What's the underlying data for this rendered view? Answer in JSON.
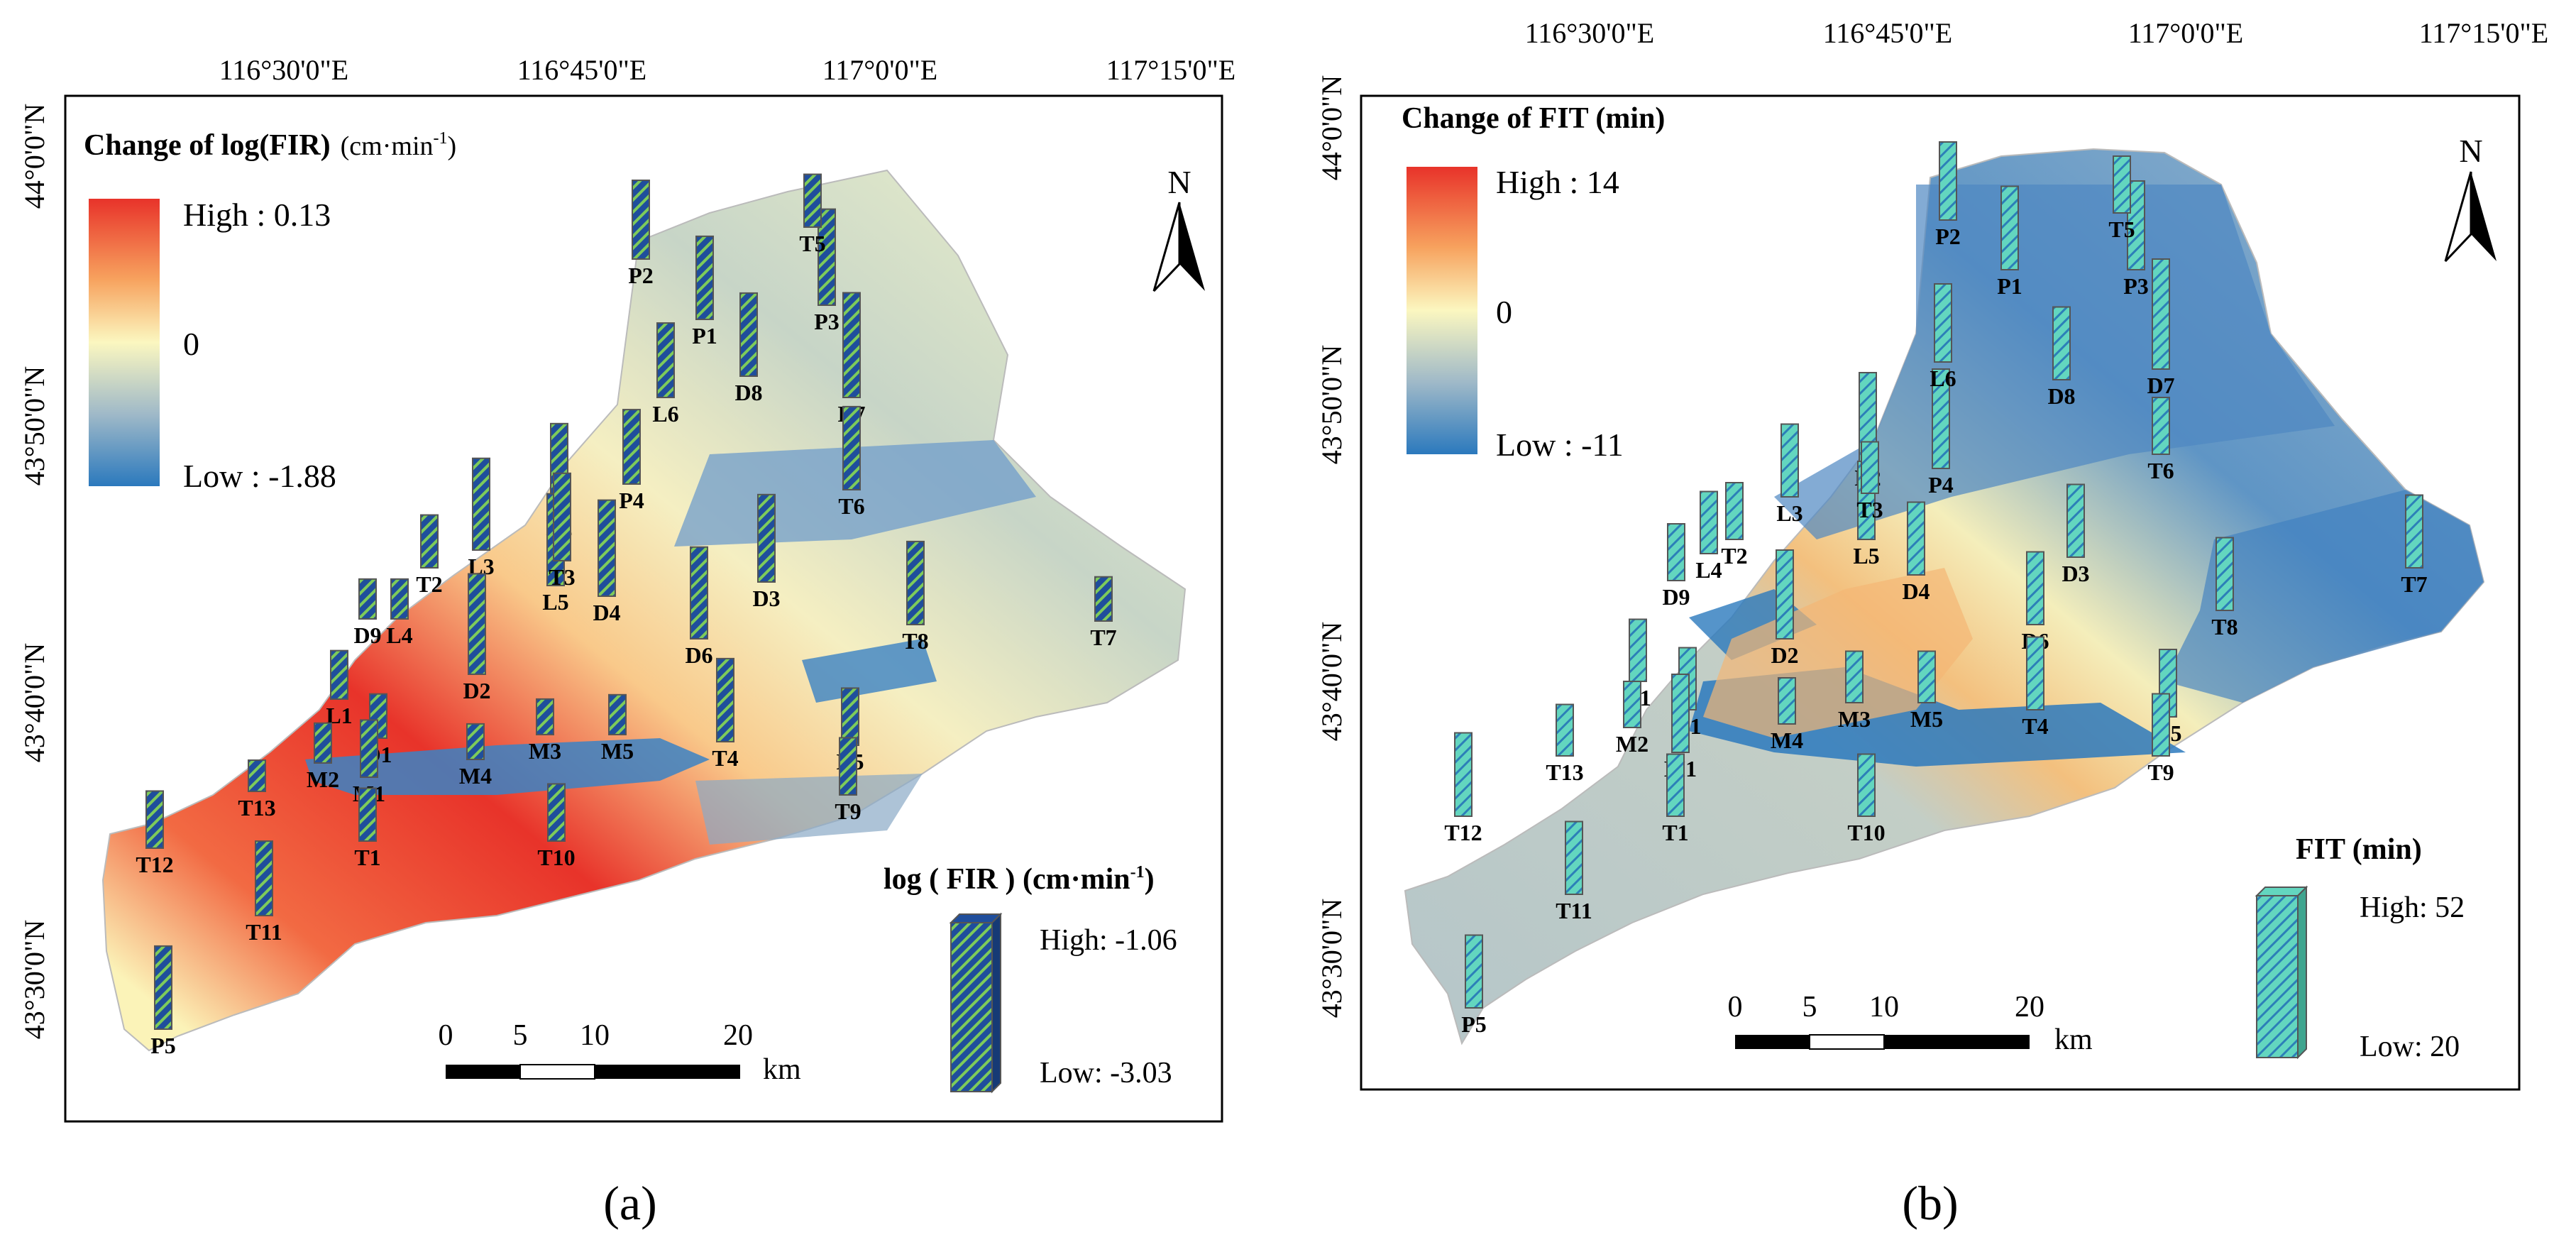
{
  "panels": [
    {
      "label": "(a)",
      "legend_title": "Change of log(FIR)",
      "legend_unit_base": "(cm·min",
      "legend_unit_sup": "-1",
      "legend_unit_end": ")",
      "gradient_high_label": "High : 0.13",
      "gradient_zero_label": "0",
      "gradient_low_label": "Low : -1.88",
      "bar_legend_title": "log ( FIR ) (cm·min",
      "bar_legend_sup": "-1",
      "bar_legend_end": ")",
      "bar_high_label": "High: -1.06",
      "bar_low_label": "Low: -3.03",
      "bar_color": "#1f4e9c",
      "bar_stripe": "#7ecb5a",
      "map_palette": "red-yellow-blue"
    },
    {
      "label": "(b)",
      "legend_title": "Change of FIT (min)",
      "gradient_high_label": "High : 14",
      "gradient_zero_label": "0",
      "gradient_low_label": "Low : -11",
      "bar_legend_title": "FIT (min)",
      "bar_high_label": "High: 52",
      "bar_low_label": "Low: 20",
      "bar_color": "#63d6bf",
      "bar_stripe": "#2c7fb8",
      "map_palette": "red-yellow-blue"
    }
  ],
  "x_ticks": [
    "116°30'0\"E",
    "116°45'0\"E",
    "117°0'0\"E",
    "117°15'0\"E"
  ],
  "y_ticks": [
    "44°0'0\"N",
    "43°50'0\"N",
    "43°40'0\"N",
    "43°30'0\"N"
  ],
  "north_label": "N",
  "scale": {
    "ticks": [
      "0",
      "5",
      "10",
      "20"
    ],
    "unit": "km"
  },
  "colors": {
    "high": "#e8332a",
    "zero": "#fbf7c0",
    "low": "#2b79bd",
    "frame": "#000000"
  },
  "sites_a": [
    {
      "label": "P1",
      "value": -1.6
    },
    {
      "label": "P2",
      "value": -1.7
    },
    {
      "label": "P3",
      "value": -1.3
    },
    {
      "label": "P4",
      "value": -1.8
    },
    {
      "label": "P5",
      "value": -1.6
    },
    {
      "label": "L1",
      "value": -2.4
    },
    {
      "label": "L2",
      "value": -1.5
    },
    {
      "label": "L3",
      "value": -1.4
    },
    {
      "label": "L4",
      "value": -2.6
    },
    {
      "label": "L5",
      "value": -1.4
    },
    {
      "label": "L6",
      "value": -1.8
    },
    {
      "label": "D1",
      "value": -2.5
    },
    {
      "label": "D2",
      "value": -1.2
    },
    {
      "label": "D3",
      "value": -1.5
    },
    {
      "label": "D4",
      "value": -1.3
    },
    {
      "label": "D5",
      "value": -2.2
    },
    {
      "label": "D6",
      "value": -1.4
    },
    {
      "label": "D7",
      "value": -1.1
    },
    {
      "label": "D8",
      "value": -1.6
    },
    {
      "label": "D9",
      "value": -2.6
    },
    {
      "label": "M1",
      "value": -2.2
    },
    {
      "label": "M2",
      "value": -2.6
    },
    {
      "label": "M3",
      "value": -2.7
    },
    {
      "label": "M4",
      "value": -2.7
    },
    {
      "label": "M5",
      "value": -2.6
    },
    {
      "label": "T1",
      "value": -2.3
    },
    {
      "label": "T2",
      "value": -2.3
    },
    {
      "label": "T3",
      "value": -1.5
    },
    {
      "label": "T4",
      "value": -1.6
    },
    {
      "label": "T5",
      "value": -2.3
    },
    {
      "label": "T6",
      "value": -1.6
    },
    {
      "label": "T7",
      "value": -2.5
    },
    {
      "label": "T8",
      "value": -1.6
    },
    {
      "label": "T9",
      "value": -2.2
    },
    {
      "label": "T10",
      "value": -2.2
    },
    {
      "label": "T11",
      "value": -1.8
    },
    {
      "label": "T12",
      "value": -2.2
    },
    {
      "label": "T13",
      "value": -2.8
    }
  ],
  "sites_b": [
    {
      "label": "P1",
      "value": 38
    },
    {
      "label": "P2",
      "value": 36
    },
    {
      "label": "P3",
      "value": 40
    },
    {
      "label": "P4",
      "value": 44
    },
    {
      "label": "P5",
      "value": 34
    },
    {
      "label": "L1",
      "value": 30
    },
    {
      "label": "L2",
      "value": 40
    },
    {
      "label": "L3",
      "value": 34
    },
    {
      "label": "L4",
      "value": 30
    },
    {
      "label": "L5",
      "value": 36
    },
    {
      "label": "L6",
      "value": 36
    },
    {
      "label": "D1",
      "value": 30
    },
    {
      "label": "D2",
      "value": 40
    },
    {
      "label": "D3",
      "value": 34
    },
    {
      "label": "D4",
      "value": 34
    },
    {
      "label": "D5",
      "value": 32
    },
    {
      "label": "D6",
      "value": 34
    },
    {
      "label": "D7",
      "value": 48
    },
    {
      "label": "D8",
      "value": 34
    },
    {
      "label": "D9",
      "value": 28
    },
    {
      "label": "M1",
      "value": 36
    },
    {
      "label": "M2",
      "value": 24
    },
    {
      "label": "M3",
      "value": 26
    },
    {
      "label": "M4",
      "value": 24
    },
    {
      "label": "M5",
      "value": 26
    },
    {
      "label": "T1",
      "value": 30
    },
    {
      "label": "T2",
      "value": 28
    },
    {
      "label": "T3",
      "value": 26
    },
    {
      "label": "T4",
      "value": 34
    },
    {
      "label": "T5",
      "value": 28
    },
    {
      "label": "T6",
      "value": 28
    },
    {
      "label": "T7",
      "value": 34
    },
    {
      "label": "T8",
      "value": 34
    },
    {
      "label": "T9",
      "value": 30
    },
    {
      "label": "T10",
      "value": 30
    },
    {
      "label": "T11",
      "value": 34
    },
    {
      "label": "T12",
      "value": 38
    },
    {
      "label": "T13",
      "value": 26
    }
  ]
}
